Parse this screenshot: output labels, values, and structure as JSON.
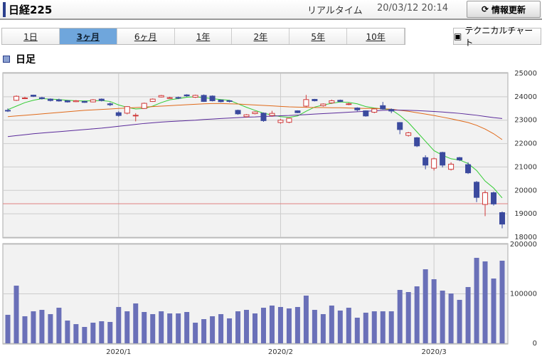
{
  "header": {
    "title": "日経225",
    "mode": "リアルタイム",
    "timestamp": "20/03/12 20:14",
    "refresh_button": "情報更新"
  },
  "tabs": [
    "1日",
    "3ヶ月",
    "6ヶ月",
    "1年",
    "2年",
    "5年",
    "10年"
  ],
  "active_tab": 1,
  "technical_button": "テクニカルチャート",
  "period_label": "日足",
  "chart_data": {
    "type": "candlestick",
    "categories": [
      null,
      null,
      null,
      null,
      null,
      null,
      null,
      null,
      null,
      null,
      null,
      null,
      null,
      "2020/1",
      null,
      null,
      null,
      null,
      null,
      null,
      null,
      null,
      null,
      null,
      null,
      null,
      null,
      null,
      null,
      null,
      null,
      null,
      "2020/2",
      null,
      null,
      null,
      null,
      null,
      null,
      null,
      null,
      null,
      null,
      null,
      null,
      null,
      null,
      null,
      null,
      null,
      "2020/3",
      null,
      null,
      null,
      null,
      null,
      null,
      null,
      null
    ],
    "open": [
      23420,
      23850,
      23940,
      24070,
      23960,
      23900,
      23870,
      23830,
      23790,
      23800,
      23780,
      23900,
      23700,
      23320,
      23300,
      23200,
      23500,
      23800,
      23990,
      23950,
      23970,
      24080,
      23980,
      24060,
      24030,
      23860,
      23830,
      23420,
      23150,
      23280,
      23300,
      23200,
      22900,
      22910,
      23400,
      23600,
      23890,
      23620,
      23740,
      23850,
      23680,
      23520,
      23400,
      23340,
      23620,
      23460,
      22900,
      22350,
      22250,
      21400,
      20950,
      21620,
      20900,
      21400,
      21100,
      20350,
      19400,
      19900,
      19050
    ],
    "high": [
      23500,
      24060,
      24000,
      24090,
      24000,
      23930,
      23920,
      23860,
      23860,
      23830,
      23900,
      23930,
      23760,
      23380,
      23600,
      23300,
      23750,
      23930,
      24080,
      24000,
      24010,
      24110,
      24090,
      24100,
      24060,
      23880,
      23860,
      23450,
      23260,
      23380,
      23330,
      23400,
      23050,
      23100,
      23420,
      24080,
      23910,
      23720,
      23880,
      23880,
      23740,
      23550,
      23420,
      23500,
      23780,
      23500,
      22920,
      22500,
      22280,
      21500,
      21400,
      21650,
      21200,
      21430,
      21200,
      20400,
      20000,
      19950,
      19100
    ],
    "low": [
      23350,
      23820,
      23900,
      23990,
      23880,
      23800,
      23790,
      23750,
      23770,
      23740,
      23760,
      23800,
      23600,
      23150,
      23250,
      22950,
      23480,
      23780,
      23970,
      23920,
      23900,
      24000,
      23950,
      23780,
      23800,
      23760,
      23760,
      23230,
      23110,
      23250,
      22930,
      23150,
      22850,
      22870,
      23300,
      23550,
      23800,
      23580,
      23700,
      23770,
      23640,
      23380,
      23150,
      23300,
      23450,
      23300,
      22400,
      22300,
      21850,
      20900,
      20850,
      20980,
      20850,
      21250,
      20700,
      19500,
      18900,
      19350,
      18380
    ],
    "close": [
      23390,
      24020,
      23950,
      24020,
      23920,
      23840,
      23820,
      23780,
      23830,
      23760,
      23870,
      23840,
      23660,
      23200,
      23580,
      23210,
      23720,
      23900,
      24050,
      23960,
      23940,
      24040,
      24060,
      23800,
      23830,
      23790,
      23800,
      23270,
      23230,
      23350,
      22980,
      23290,
      23000,
      23080,
      23320,
      23880,
      23830,
      23690,
      23830,
      23800,
      23700,
      23440,
      23180,
      23480,
      23480,
      23390,
      22600,
      22460,
      21900,
      21080,
      21350,
      21080,
      21120,
      21300,
      20750,
      19700,
      19900,
      19420,
      18560
    ],
    "up_color": "#d03a3a",
    "down_color": "#3b4a9e",
    "moving_averages": [
      {
        "color": "#33cc33",
        "values": [
          23450,
          23600,
          23750,
          23850,
          23920,
          23900,
          23880,
          23850,
          23830,
          23820,
          23830,
          23840,
          23800,
          23650,
          23550,
          23480,
          23500,
          23600,
          23750,
          23870,
          23920,
          23980,
          24000,
          23960,
          23920,
          23880,
          23850,
          23700,
          23550,
          23420,
          23300,
          23220,
          23150,
          23120,
          23180,
          23380,
          23560,
          23650,
          23720,
          23780,
          23760,
          23700,
          23580,
          23520,
          23480,
          23450,
          23200,
          22900,
          22500,
          22100,
          21700,
          21500,
          21350,
          21300,
          21150,
          20850,
          20400,
          20100,
          19680
        ]
      },
      {
        "color": "#e06a1a",
        "values": [
          23150,
          23180,
          23210,
          23240,
          23270,
          23300,
          23330,
          23360,
          23390,
          23420,
          23440,
          23460,
          23480,
          23500,
          23520,
          23540,
          23560,
          23580,
          23600,
          23620,
          23640,
          23660,
          23680,
          23700,
          23710,
          23710,
          23700,
          23690,
          23670,
          23650,
          23630,
          23610,
          23590,
          23570,
          23560,
          23550,
          23540,
          23540,
          23530,
          23530,
          23520,
          23510,
          23500,
          23500,
          23490,
          23470,
          23420,
          23380,
          23320,
          23260,
          23200,
          23130,
          23060,
          22980,
          22900,
          22780,
          22620,
          22420,
          22170
        ]
      },
      {
        "color": "#5a2a9a",
        "values": [
          22300,
          22340,
          22380,
          22420,
          22450,
          22480,
          22510,
          22540,
          22570,
          22600,
          22630,
          22660,
          22700,
          22740,
          22780,
          22820,
          22860,
          22890,
          22920,
          22940,
          22960,
          22980,
          23000,
          23030,
          23050,
          23070,
          23090,
          23110,
          23130,
          23140,
          23160,
          23170,
          23190,
          23200,
          23220,
          23240,
          23260,
          23280,
          23300,
          23320,
          23340,
          23360,
          23380,
          23400,
          23420,
          23430,
          23430,
          23420,
          23410,
          23390,
          23370,
          23350,
          23320,
          23290,
          23250,
          23210,
          23160,
          23110,
          23070
        ]
      }
    ],
    "reference_line": {
      "value": 19430,
      "color": "#e08080"
    },
    "ylim": [
      18000,
      25000
    ],
    "yticks": [
      18000,
      19000,
      20000,
      21000,
      22000,
      23000,
      24000,
      25000
    ],
    "grid": true,
    "volume": {
      "type": "bar",
      "color": "#6a70b8",
      "values": [
        57600,
        116500,
        54700,
        64700,
        67600,
        59000,
        71900,
        46000,
        38800,
        33100,
        41700,
        44600,
        43200,
        73400,
        64700,
        80600,
        63300,
        59000,
        64700,
        60400,
        60400,
        63300,
        41700,
        48900,
        54700,
        59000,
        50400,
        64700,
        67600,
        60400,
        71900,
        76300,
        73400,
        70500,
        73400,
        96400,
        67600,
        59000,
        76300,
        66200,
        71900,
        51800,
        61900,
        64700,
        64700,
        64700,
        107900,
        103600,
        115100,
        149600,
        129500,
        106500,
        100700,
        87800,
        113700,
        172700,
        165500,
        130900,
        166900
      ],
      "ylim": [
        0,
        200000
      ],
      "yticks": [
        0,
        100000,
        200000
      ]
    }
  }
}
